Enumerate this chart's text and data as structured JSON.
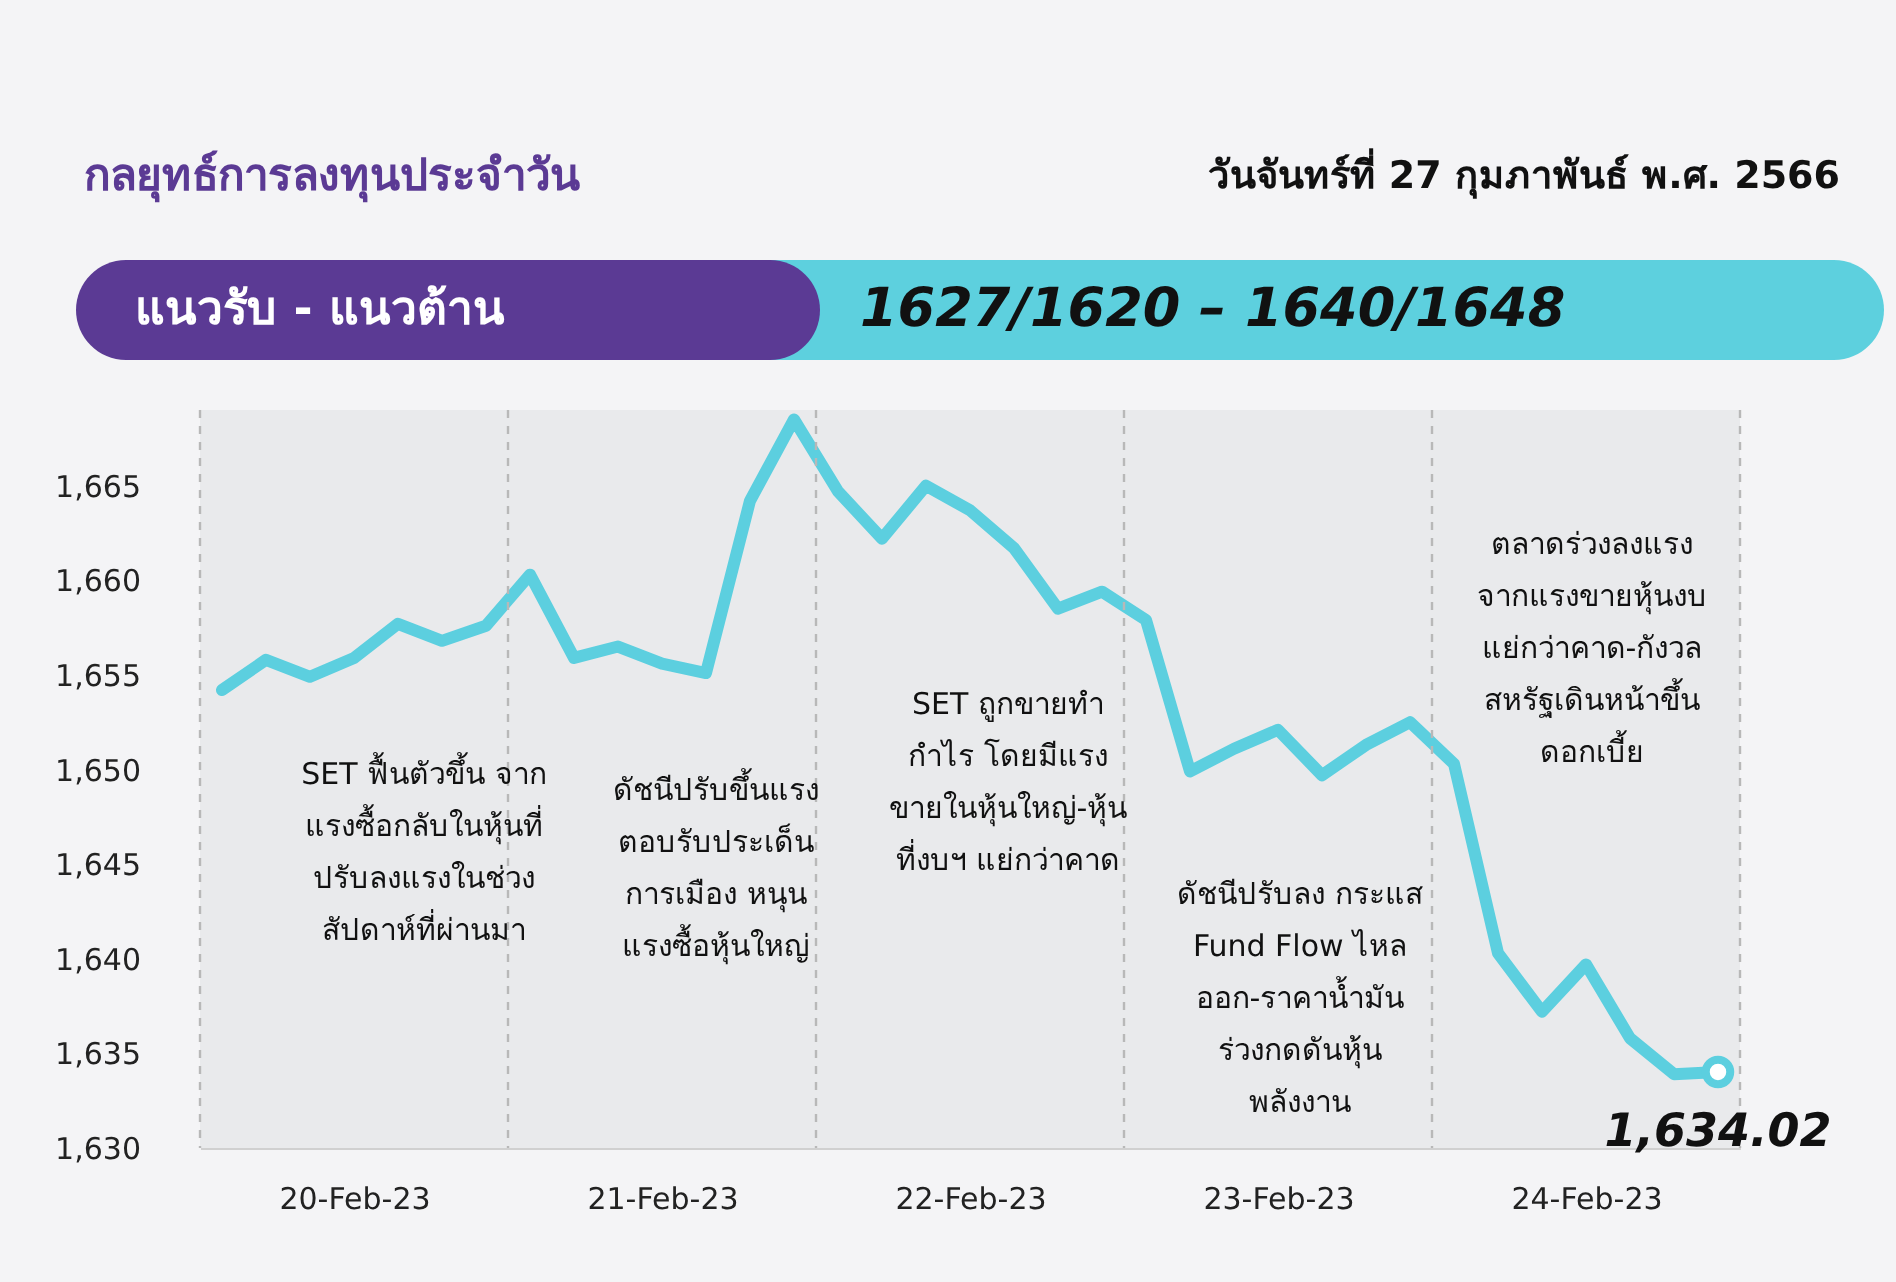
{
  "chart_data": {
    "type": "line",
    "title": "กลยุทธ์การลงทุนประจำวัน",
    "subtitle": "วันจันทร์ที่ 27 กุมภาพันธ์ พ.ศ. 2566",
    "categories": [
      null,
      null,
      null,
      "20-Feb-23",
      null,
      null,
      null,
      null,
      null,
      null,
      "21-Feb-23",
      null,
      null,
      null,
      null,
      null,
      null,
      "22-Feb-23",
      null,
      null,
      null,
      null,
      null,
      null,
      "23-Feb-23",
      null,
      null,
      null,
      null,
      null,
      null,
      "24-Feb-23",
      null,
      null,
      null
    ],
    "series": [
      {
        "color": "#5ccfdf",
        "values": [
          1654.2,
          1655.8,
          1654.9,
          1655.9,
          1657.7,
          1656.8,
          1657.6,
          1660.3,
          1655.9,
          1656.5,
          1655.6,
          1655.1,
          1664.2,
          1668.5,
          1664.7,
          1662.2,
          1665.0,
          1663.7,
          1661.7,
          1658.5,
          1659.4,
          1657.9,
          1649.9,
          1651.1,
          1652.1,
          1649.7,
          1651.3,
          1652.5,
          1650.3,
          1640.3,
          1637.2,
          1639.7,
          1635.8,
          1633.9,
          1634.02
        ],
        "value_labels": [
          null,
          null,
          null,
          null,
          null,
          null,
          null,
          null,
          null,
          null,
          null,
          null,
          null,
          null,
          null,
          null,
          null,
          null,
          null,
          null,
          null,
          null,
          null,
          null,
          null,
          null,
          null,
          null,
          null,
          null,
          null,
          null,
          null,
          null,
          "1,634.02"
        ]
      }
    ],
    "ylim": [
      1630,
      1669
    ],
    "yticks": [
      {
        "value": 1630,
        "label": "1,630"
      },
      {
        "value": 1635,
        "label": "1,635"
      },
      {
        "value": 1640,
        "label": "1,640"
      },
      {
        "value": 1645,
        "label": "1,645"
      },
      {
        "value": 1650,
        "label": "1,650"
      },
      {
        "value": 1655,
        "label": "1,655"
      },
      {
        "value": 1660,
        "label": "1,660"
      },
      {
        "value": 1665,
        "label": "1,665"
      }
    ],
    "annotations": [
      "แนวรับ - แนวต้าน",
      "1627/1620 – 1640/1648",
      "SET ฟื้นตัวขึ้น จาก\nแรงซื้อกลับในหุ้นที่\nปรับลงแรงในช่วง\nสัปดาห์ที่ผ่านมา",
      "ดัชนีปรับขึ้นแรง\nตอบรับประเด็น\nการเมือง หนุน\nแรงซื้อหุ้นใหญ่",
      "SET ถูกขายทำ\nกำไร โดยมีแรง\nขายในหุ้นใหญ่-หุ้น\nที่งบฯ แย่กว่าคาด",
      "ดัชนีปรับลง กระแส\nFund Flow ไหล\nออก-ราคาน้ำมัน\nร่วงกดดันหุ้น\nพลังงาน",
      "ตลาดร่วงลงแรง\nจากแรงขายหุ้นงบ\nแย่กว่าคาด-กังวล\nสหรัฐเดินหน้าขึ้น\nดอกเบี้ย"
    ],
    "grid": false,
    "marker": "none",
    "line_style": "solid"
  }
}
